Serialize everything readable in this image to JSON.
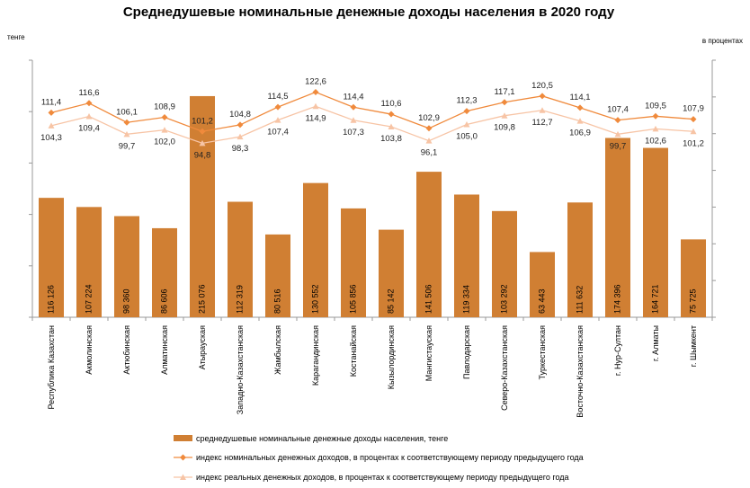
{
  "chart_data": {
    "type": "bar",
    "title": "Среднедушевые номинальные денежные доходы населения в 2020 году",
    "ylabel_left": "тенге",
    "ylabel_right": "в процентах",
    "categories": [
      "Республика Казахстан",
      "Акмолинская",
      "Актюбинская",
      "Алматинская",
      "Атырауская",
      "Западно-Казахстанская",
      "Жамбылская",
      "Карагандинская",
      "Костанайская",
      "Кызылординская",
      "Мангистауская",
      "Павлодарская",
      "Северо-Казахстанская",
      "Туркестанская",
      "Восточно-Казахстанская",
      "г. Нур-Султан",
      "г. Алматы",
      "г. Шымкент"
    ],
    "series": [
      {
        "name": "среднедушевые номинальные денежные доходы населения, тенге",
        "type": "bar",
        "color": "#D07F33",
        "values": [
          116126,
          107224,
          98360,
          86606,
          215076,
          112319,
          80516,
          130552,
          105856,
          85142,
          141506,
          119334,
          103292,
          63443,
          111632,
          174396,
          164721,
          75725
        ],
        "labels": [
          "116 126",
          "107 224",
          "98 360",
          "86 606",
          "215 076",
          "112 319",
          "80 516",
          "130 552",
          "105 856",
          "85 142",
          "141 506",
          "119 334",
          "103 292",
          "63 443",
          "111 632",
          "174 396",
          "164 721",
          "75 725"
        ]
      },
      {
        "name": "индекс номинальных денежных доходов, в процентах к соответствующему периоду предыдущего года",
        "type": "line",
        "color": "#F08A3C",
        "values": [
          111.4,
          116.6,
          106.1,
          108.9,
          101.2,
          104.8,
          114.5,
          122.6,
          114.4,
          110.6,
          102.9,
          112.3,
          117.1,
          120.5,
          114.1,
          107.4,
          109.5,
          107.9
        ],
        "labels": [
          "111,4",
          "116,6",
          "106,1",
          "108,9",
          "101,2",
          "104,8",
          "114,5",
          "122,6",
          "114,4",
          "110,6",
          "102,9",
          "112,3",
          "117,1",
          "120,5",
          "114,1",
          "107,4",
          "109,5",
          "107,9"
        ]
      },
      {
        "name": "индекс реальных денежных доходов, в процентах к соответствующему периоду предыдущего года",
        "type": "line",
        "color": "#F7C4A5",
        "values": [
          104.3,
          109.4,
          99.7,
          102.0,
          94.8,
          98.3,
          107.4,
          114.9,
          107.3,
          103.8,
          96.1,
          105.0,
          109.8,
          112.7,
          106.9,
          99.7,
          102.6,
          101.2
        ],
        "labels": [
          "104,3",
          "109,4",
          "99,7",
          "102,0",
          "94,8",
          "98,3",
          "107,4",
          "114,9",
          "107,3",
          "103,8",
          "96,1",
          "105,0",
          "109,8",
          "112,7",
          "106,9",
          "99,7",
          "102,6",
          "101,2"
        ]
      }
    ],
    "ylim_left": [
      0,
      250000
    ],
    "ylim_right": [
      0,
      140
    ],
    "grid": false,
    "legend": "bottom"
  }
}
